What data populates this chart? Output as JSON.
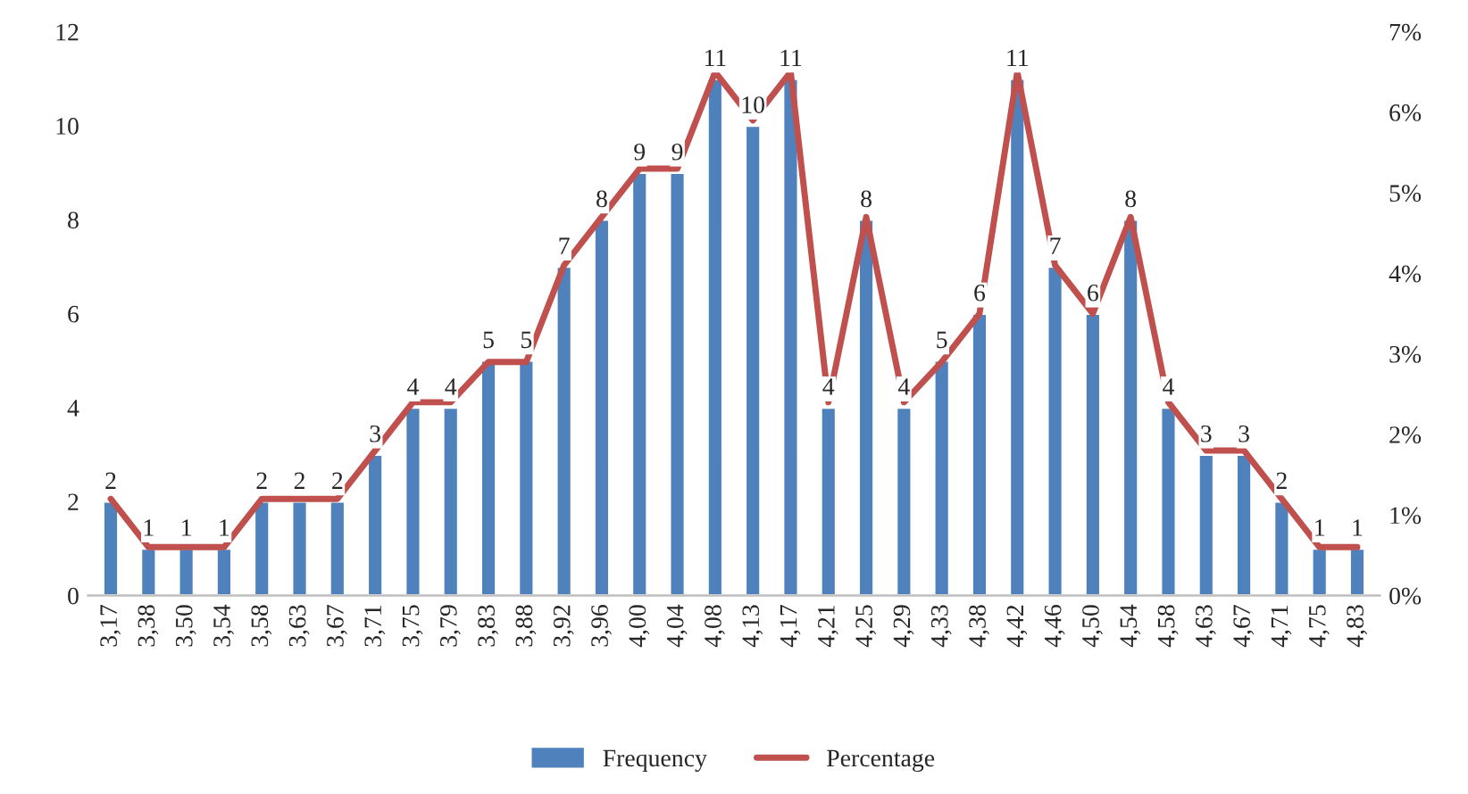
{
  "chart_data": {
    "type": "bar",
    "categories": [
      "3,17",
      "3,38",
      "3,50",
      "3,54",
      "3,58",
      "3,63",
      "3,67",
      "3,71",
      "3,75",
      "3,79",
      "3,83",
      "3,88",
      "3,92",
      "3,96",
      "4,00",
      "4,04",
      "4,08",
      "4,13",
      "4,17",
      "4,21",
      "4,25",
      "4,29",
      "4,33",
      "4,38",
      "4,42",
      "4,46",
      "4,50",
      "4,54",
      "4,58",
      "4,63",
      "4,67",
      "4,71",
      "4,75",
      "4,83"
    ],
    "series": [
      {
        "name": "Frequency",
        "color": "#4f81bd",
        "values": [
          2,
          1,
          1,
          1,
          2,
          2,
          2,
          3,
          4,
          4,
          5,
          5,
          7,
          8,
          9,
          9,
          11,
          10,
          11,
          4,
          8,
          4,
          5,
          6,
          11,
          7,
          6,
          8,
          4,
          3,
          3,
          2,
          1,
          1
        ],
        "value_labels": [
          "2",
          "1",
          "1",
          "1",
          "2",
          "2",
          "2",
          "3",
          "4",
          "4",
          "5",
          "5",
          "7",
          "8",
          "9",
          "9",
          "11",
          "10",
          "11",
          "4",
          "8",
          "4",
          "5",
          "6",
          "11",
          "7",
          "6",
          "8",
          "4",
          "3",
          "3",
          "2",
          "1",
          "1"
        ]
      },
      {
        "name": "Percentage",
        "type": "line",
        "axis": "y2",
        "color": "#c0504d",
        "values": [
          1.2,
          0.6,
          0.6,
          0.6,
          1.2,
          1.2,
          1.2,
          1.8,
          2.4,
          2.4,
          2.9,
          2.9,
          4.1,
          4.7,
          5.3,
          5.3,
          6.5,
          5.9,
          6.5,
          2.4,
          4.7,
          2.4,
          2.9,
          3.5,
          6.5,
          4.1,
          3.5,
          4.7,
          2.4,
          1.8,
          1.8,
          1.2,
          0.6,
          0.6
        ]
      }
    ],
    "ylim": [
      0,
      12
    ],
    "yticks": [
      0,
      2,
      4,
      6,
      8,
      10,
      12
    ],
    "y2lim": [
      0,
      7
    ],
    "y2ticks": [
      {
        "value": 0,
        "label": "0%"
      },
      {
        "value": 1,
        "label": "1%"
      },
      {
        "value": 2,
        "label": "2%"
      },
      {
        "value": 3,
        "label": "3%"
      },
      {
        "value": 4,
        "label": "4%"
      },
      {
        "value": 5,
        "label": "5%"
      },
      {
        "value": 6,
        "label": "6%"
      },
      {
        "value": 7,
        "label": "7%"
      }
    ],
    "grid": false,
    "legend": "bottom",
    "marker": "none",
    "line_style": "solid"
  }
}
